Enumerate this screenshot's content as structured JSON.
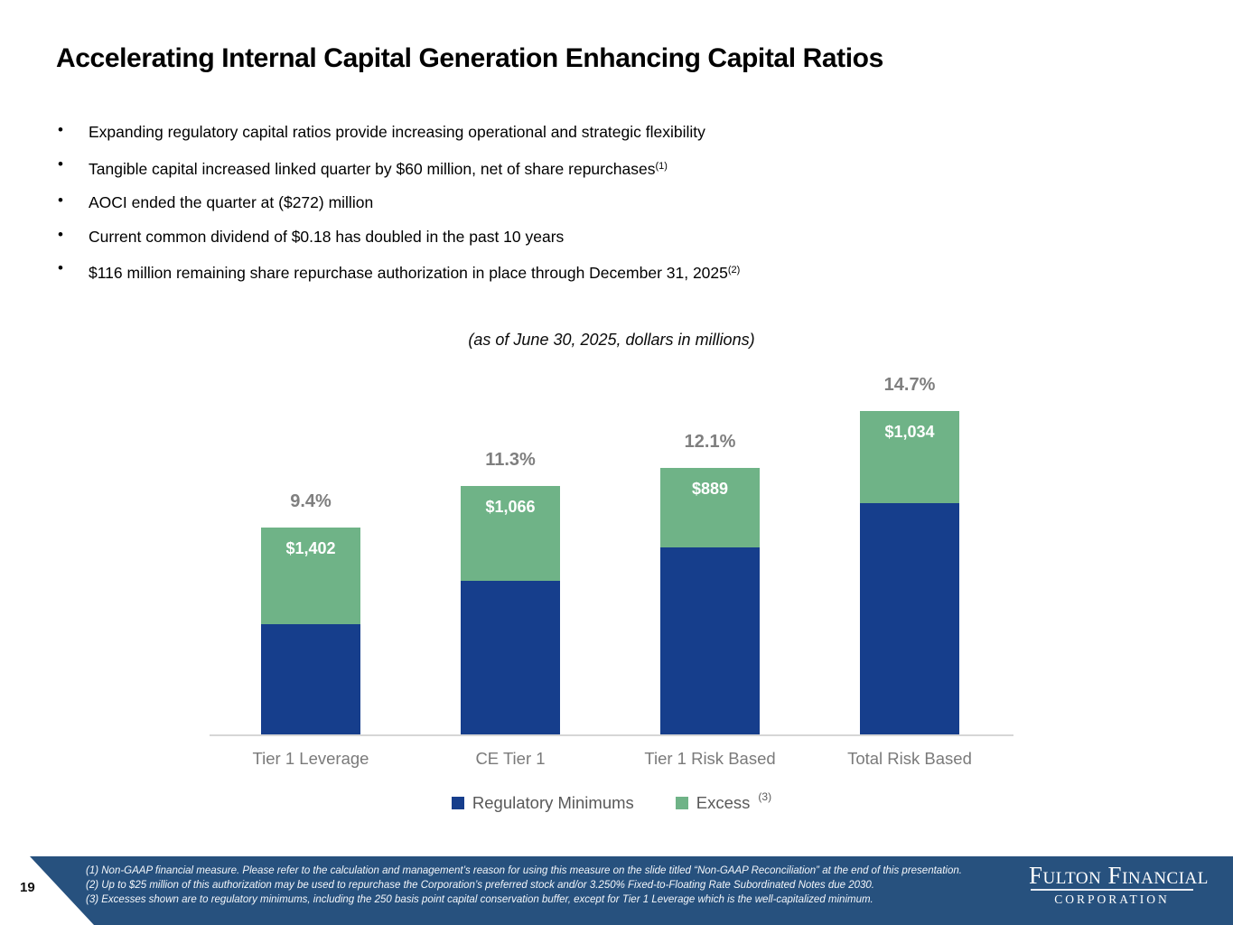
{
  "slide": {
    "title": "Accelerating Internal Capital Generation Enhancing Capital Ratios",
    "bullets": [
      {
        "text": "Expanding regulatory capital ratios provide increasing operational and strategic flexibility",
        "sup": ""
      },
      {
        "text": "Tangible capital increased linked quarter by $60 million, net of share repurchases",
        "sup": "(1)"
      },
      {
        "text": "AOCI ended the quarter at ($272)  million",
        "sup": ""
      },
      {
        "text": "Current common dividend of $0.18 has doubled in the past 10 years",
        "sup": ""
      },
      {
        "text": "$116 million remaining share repurchase authorization in place through December 31, 2025",
        "sup": "(2)"
      }
    ],
    "page_number": "19"
  },
  "chart_data": {
    "type": "bar",
    "stacked": true,
    "subtitle": "(as of June 30, 2025, dollars in millions)",
    "categories": [
      "Tier 1 Leverage",
      "CE Tier 1",
      "Tier 1 Risk Based",
      "Total Risk Based"
    ],
    "series": [
      {
        "name": "Regulatory Minimums",
        "color": "#163E8C",
        "values_pct": [
          5.0,
          7.0,
          8.5,
          10.5
        ]
      },
      {
        "name": "Excess",
        "name_sup": "(3)",
        "color": "#6FB387",
        "values_pct": [
          4.4,
          4.3,
          3.6,
          4.2
        ],
        "value_labels": [
          "$1,402",
          "$1,066",
          "$889",
          "$1,034"
        ]
      }
    ],
    "total_labels": [
      "9.4%",
      "11.3%",
      "12.1%",
      "14.7%"
    ],
    "totals_pct": [
      9.4,
      11.3,
      12.1,
      14.7
    ],
    "legend_position": "bottom",
    "grid": false,
    "axis_line_color": "#D6D6D6",
    "label_color_pct": "#7F7F7F",
    "label_color_category": "#7A7A7A"
  },
  "footer": {
    "background": "#27517E",
    "footnotes": [
      "(1) Non-GAAP financial measure. Please refer to the calculation and management’s reason for using this measure on the slide titled “Non-GAAP Reconciliation” at the end of this presentation.",
      "(2) Up to $25 million of this authorization may be used to repurchase the Corporation’s preferred stock and/or 3.250% Fixed-to-Floating Rate Subordinated Notes due 2030.",
      "(3) Excesses shown are to regulatory minimums, including the 250 basis point capital conservation buffer, except for Tier 1 Leverage which is the well-capitalized minimum."
    ],
    "logo": {
      "line1": "Fulton Financial",
      "line2": "CORPORATION"
    }
  }
}
